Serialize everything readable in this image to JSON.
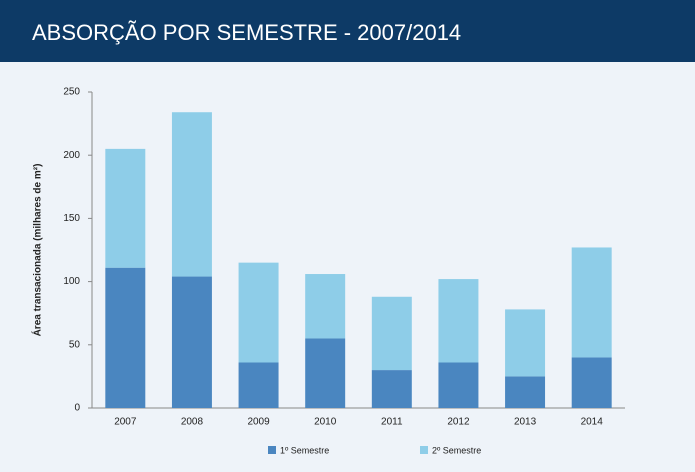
{
  "chart_data": {
    "type": "stacked_bar",
    "title": "ABSORÇÃO POR SEMESTRE - 2007/2014",
    "y_label": "Área transacionada (milhares de m²)",
    "categories": [
      "2007",
      "2008",
      "2009",
      "2010",
      "2011",
      "2012",
      "2013",
      "2014"
    ],
    "series": [
      {
        "name": "1º Semestre",
        "color": "#4a86c0",
        "values": [
          111,
          104,
          36,
          55,
          30,
          36,
          25,
          40
        ]
      },
      {
        "name": "2º Semestre",
        "color": "#8ecde8",
        "values": [
          94,
          130,
          79,
          51,
          58,
          66,
          53,
          87
        ]
      }
    ],
    "ylim": [
      0,
      250
    ],
    "yticks": [
      0,
      50,
      100,
      150,
      200,
      250
    ],
    "grid": false,
    "legend": "bottom"
  }
}
